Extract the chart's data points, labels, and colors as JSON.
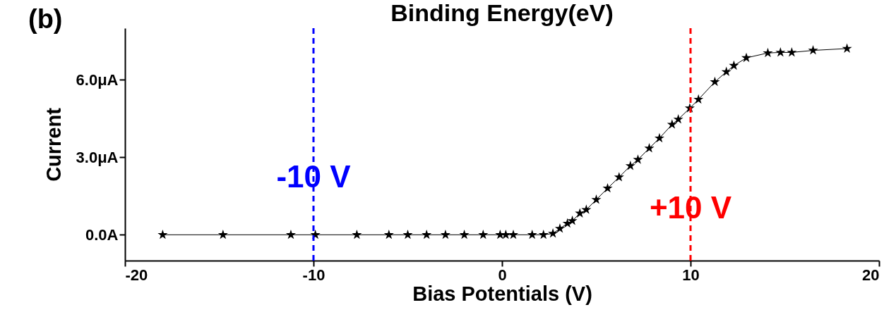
{
  "chart_data": {
    "type": "line",
    "title": "Binding Energy(eV)",
    "xlabel": "Bias Potentials (V)",
    "ylabel": "Current",
    "x": [
      -18.0,
      -14.8,
      -11.2,
      -9.9,
      -7.7,
      -6.0,
      -5.0,
      -4.0,
      -3.0,
      -2.0,
      -1.0,
      -0.1,
      0.2,
      0.6,
      1.6,
      2.2,
      2.7,
      3.07,
      3.47,
      3.73,
      4.13,
      4.47,
      5.0,
      5.6,
      6.21,
      6.81,
      7.21,
      7.81,
      8.35,
      9.02,
      9.35,
      9.96,
      10.42,
      11.29,
      11.9,
      12.3,
      12.96,
      14.1,
      14.77,
      15.37,
      16.5,
      18.3
    ],
    "series": [
      {
        "color": "#000000",
        "values": [
          0,
          0,
          0,
          0,
          0,
          0,
          0,
          0,
          0,
          0,
          0,
          0,
          0,
          0,
          0,
          0,
          0.05,
          0.24,
          0.44,
          0.54,
          0.83,
          0.97,
          1.36,
          1.8,
          2.23,
          2.67,
          2.91,
          3.35,
          3.74,
          4.27,
          4.47,
          4.9,
          5.24,
          5.92,
          6.31,
          6.55,
          6.85,
          7.04,
          7.06,
          7.06,
          7.14,
          7.21
        ]
      }
    ],
    "xlim": [
      -20,
      20
    ],
    "xticks": [
      -20,
      -10,
      0,
      10,
      20
    ],
    "ylim": [
      -1,
      8
    ],
    "yticks": [
      {
        "value": 0,
        "label": "0.0A"
      },
      {
        "value": 3,
        "label": "3.0μA"
      },
      {
        "value": 6,
        "label": "6.0μA"
      }
    ],
    "ref_lines": [
      {
        "axis": "x",
        "value": -10,
        "color": "#0000ff",
        "line_style": "dashed"
      },
      {
        "axis": "x",
        "value": 10,
        "color": "#ff0000",
        "line_style": "dashed"
      }
    ],
    "annotations": [
      "(b)",
      {
        "text": "-10 V",
        "x": -10,
        "y": 2.2
      },
      {
        "text": "+10 V",
        "x": 10,
        "y": 1.0
      }
    ],
    "marker": "star",
    "line_style": "solid"
  }
}
